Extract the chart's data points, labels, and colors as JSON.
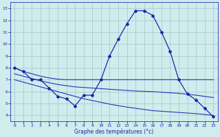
{
  "hours": [
    0,
    1,
    2,
    3,
    4,
    5,
    6,
    7,
    8,
    9,
    10,
    11,
    12,
    13,
    14,
    15,
    16,
    17,
    18,
    19,
    20,
    21,
    22,
    23
  ],
  "line_main": [
    8.0,
    7.7,
    7.0,
    7.0,
    6.3,
    5.6,
    5.4,
    4.8,
    5.7,
    5.7,
    7.0,
    9.0,
    10.4,
    11.7,
    12.8,
    12.8,
    12.4,
    11.0,
    9.4,
    7.0,
    5.8,
    5.3,
    4.6,
    3.9
  ],
  "line_flat": [
    8.0,
    7.7,
    7.5,
    7.3,
    7.15,
    7.05,
    7.0,
    7.0,
    7.0,
    7.0,
    7.0,
    7.0,
    7.0,
    7.0,
    7.0,
    7.0,
    7.0,
    7.0,
    7.0,
    7.0,
    7.0,
    7.0,
    7.0,
    7.0
  ],
  "line_mid": [
    7.5,
    7.3,
    7.1,
    6.9,
    6.75,
    6.6,
    6.5,
    6.4,
    6.35,
    6.3,
    6.25,
    6.2,
    6.15,
    6.1,
    6.05,
    6.02,
    6.0,
    5.95,
    5.9,
    5.85,
    5.78,
    5.7,
    5.6,
    5.5
  ],
  "line_low": [
    7.0,
    6.8,
    6.6,
    6.4,
    6.2,
    6.0,
    5.8,
    5.6,
    5.4,
    5.25,
    5.1,
    4.95,
    4.82,
    4.7,
    4.6,
    4.5,
    4.4,
    4.35,
    4.3,
    4.25,
    4.2,
    4.15,
    4.08,
    4.0
  ],
  "color_main": "#2222aa",
  "color_lines": "#2233bb",
  "bg_color": "#d0ecec",
  "grid_color": "#a0c8c8",
  "xlabel": "Graphe des températures (°c)",
  "ylim": [
    3.5,
    13.5
  ],
  "xlim": [
    -0.5,
    23.5
  ],
  "yticks": [
    4,
    5,
    6,
    7,
    8,
    9,
    10,
    11,
    12,
    13
  ],
  "xticks": [
    0,
    1,
    2,
    3,
    4,
    5,
    6,
    7,
    8,
    9,
    10,
    11,
    12,
    13,
    14,
    15,
    16,
    17,
    18,
    19,
    20,
    21,
    22,
    23
  ]
}
